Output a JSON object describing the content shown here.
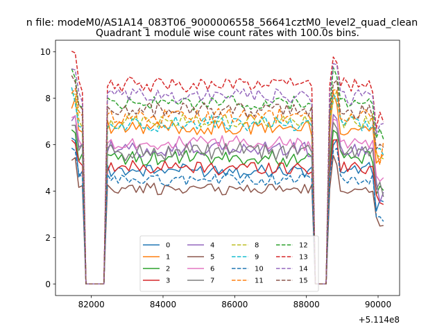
{
  "figure": {
    "suptitle": "n file: modeM0/AS1A14_083T06_9000006558_56641cztM0_level2_quad_clean",
    "offset_label": "+5.114e8"
  },
  "chart_data": {
    "type": "line",
    "title": "Quadrant 1 module wise count rates with 100.0s bins.",
    "xlabel": "",
    "ylabel": "",
    "x_offset": 511400000,
    "xlim": [
      81000,
      90600
    ],
    "ylim": [
      -0.5,
      10.5
    ],
    "xticks": [
      82000,
      84000,
      86000,
      88000,
      90000
    ],
    "xtick_labels": [
      "82000",
      "84000",
      "86000",
      "88000",
      "90000"
    ],
    "yticks": [
      0,
      2,
      4,
      6,
      8,
      10
    ],
    "ytick_labels": [
      "0",
      "2",
      "4",
      "6",
      "8",
      "10"
    ],
    "grid": false,
    "legend_placement": "lower-center, 4 columns",
    "x_segments": [
      {
        "start": 81450,
        "end": 81750
      },
      {
        "start": 81750,
        "end": 82450,
        "gap": true
      },
      {
        "start": 82550,
        "end": 88150
      },
      {
        "start": 88150,
        "end": 88650,
        "gap": true
      },
      {
        "start": 88750,
        "end": 90150
      }
    ],
    "series": [
      {
        "name": "0",
        "level": 4.9,
        "spread": 0.28,
        "color": "#1f77b4",
        "dash": "solid"
      },
      {
        "name": "1",
        "level": 6.7,
        "spread": 0.35,
        "color": "#ff7f0e",
        "dash": "solid"
      },
      {
        "name": "2",
        "level": 5.4,
        "spread": 0.3,
        "color": "#2ca02c",
        "dash": "solid"
      },
      {
        "name": "3",
        "level": 5.0,
        "spread": 0.28,
        "color": "#d62728",
        "dash": "solid"
      },
      {
        "name": "4",
        "level": 5.8,
        "spread": 0.33,
        "color": "#9467bd",
        "dash": "solid"
      },
      {
        "name": "5",
        "level": 4.1,
        "spread": 0.25,
        "color": "#8c564b",
        "dash": "solid"
      },
      {
        "name": "6",
        "level": 6.1,
        "spread": 0.33,
        "color": "#e377c2",
        "dash": "solid"
      },
      {
        "name": "7",
        "level": 5.7,
        "spread": 0.35,
        "color": "#7f7f7f",
        "dash": "solid"
      },
      {
        "name": "8",
        "level": 7.0,
        "spread": 0.32,
        "color": "#bcbd22",
        "dash": "dashed"
      },
      {
        "name": "9",
        "level": 6.9,
        "spread": 0.32,
        "color": "#17becf",
        "dash": "dashed"
      },
      {
        "name": "10",
        "level": 4.5,
        "spread": 0.25,
        "color": "#1f77b4",
        "dash": "dashed"
      },
      {
        "name": "11",
        "level": 7.2,
        "spread": 0.33,
        "color": "#ff7f0e",
        "dash": "dashed"
      },
      {
        "name": "12",
        "level": 7.8,
        "spread": 0.3,
        "color": "#2ca02c",
        "dash": "dashed"
      },
      {
        "name": "13",
        "level": 8.6,
        "spread": 0.3,
        "color": "#d62728",
        "dash": "dashed"
      },
      {
        "name": "14",
        "level": 8.1,
        "spread": 0.32,
        "color": "#9467bd",
        "dash": "dashed"
      },
      {
        "name": "15",
        "level": 7.5,
        "spread": 0.3,
        "color": "#8c564b",
        "dash": "dashed"
      }
    ]
  }
}
